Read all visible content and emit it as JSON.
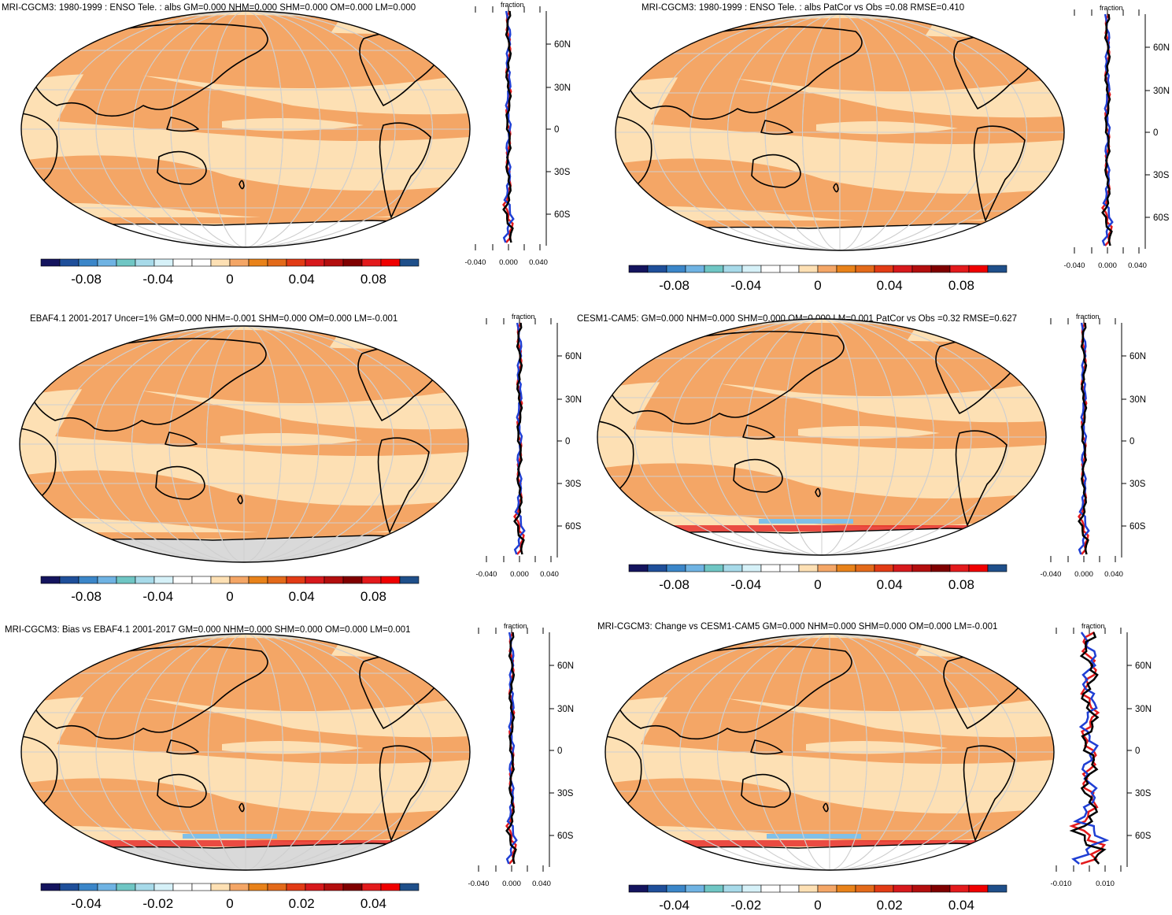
{
  "colors": {
    "ocean_light": "#fde0b4",
    "ocean_mid": "#f4a666",
    "land_gray": "#d9d9d9",
    "white": "#ffffff",
    "red": "#e31a1c",
    "blue": "#1f3fd4",
    "black": "#000000"
  },
  "palette": [
    "#14145e",
    "#1f4f9a",
    "#3b86c9",
    "#6fb3e3",
    "#6fc6c4",
    "#a7dae9",
    "#d6f1f8",
    "#ffffff",
    "#ffffff",
    "#fde0b4",
    "#f4a666",
    "#e8821a",
    "#e36a1a",
    "#e23b15",
    "#d7191c",
    "#b30e0e",
    "#800000",
    "#e31a1c",
    "#f00000",
    "#1f4f8a"
  ],
  "lat_labels": [
    "60N",
    "30N",
    "0",
    "30S",
    "60S"
  ],
  "fraction_label": "fraction",
  "panels": [
    {
      "title": "MRI-CGCM3: 1980-1999 : ENSO Tele. : albs GM=0.000 NHM=0.000 SHM=0.000 OM=0.000 LM=0.000",
      "colorbar_labels": [
        "-0.08",
        "-0.04",
        "0",
        "0.04",
        "0.08"
      ],
      "profile_ticks": [
        "-0.040",
        "0.000",
        "0.040"
      ],
      "antarctica_gray": false
    },
    {
      "title": "MRI-CGCM3: 1980-1999 : ENSO Tele. : albs PatCor vs Obs =0.08 RMSE=0.410",
      "colorbar_labels": [
        "-0.08",
        "-0.04",
        "0",
        "0.04",
        "0.08"
      ],
      "profile_ticks": [
        "-0.040",
        "0.000",
        "0.040"
      ],
      "antarctica_gray": false
    },
    {
      "title": "EBAF4.1 2001-2017 Uncer=1% GM=0.000 NHM=-0.001 SHM=0.000 OM=0.000 LM=-0.001",
      "colorbar_labels": [
        "-0.08",
        "-0.04",
        "0",
        "0.04",
        "0.08"
      ],
      "profile_ticks": [
        "-0.040",
        "0.000",
        "0.040"
      ],
      "antarctica_gray": true
    },
    {
      "title": "CESM1-CAM5: GM=0.000 NHM=0.000 SHM=0.000 OM=0.000 LM=0.001 PatCor vs Obs =0.32 RMSE=0.627",
      "colorbar_labels": [
        "-0.08",
        "-0.04",
        "0",
        "0.04",
        "0.08"
      ],
      "profile_ticks": [
        "-0.040",
        "0.000",
        "0.040"
      ],
      "antarctica_gray": false
    },
    {
      "title": "MRI-CGCM3: Bias vs EBAF4.1 2001-2017 GM=0.000 NHM=0.000 SHM=0.000 OM=0.000 LM=0.001",
      "colorbar_labels": [
        "-0.04",
        "-0.02",
        "0",
        "0.02",
        "0.04"
      ],
      "profile_ticks": [
        "-0.040",
        "0.000",
        "0.040"
      ],
      "antarctica_gray": true
    },
    {
      "title": "MRI-CGCM3: Change vs CESM1-CAM5 GM=0.000 NHM=0.000 SHM=0.000 OM=0.000 LM=-0.001",
      "colorbar_labels": [
        "-0.04",
        "-0.02",
        "0",
        "0.02",
        "0.04"
      ],
      "profile_ticks": [
        "-0.010",
        "0.010"
      ],
      "antarctica_gray": false
    }
  ]
}
